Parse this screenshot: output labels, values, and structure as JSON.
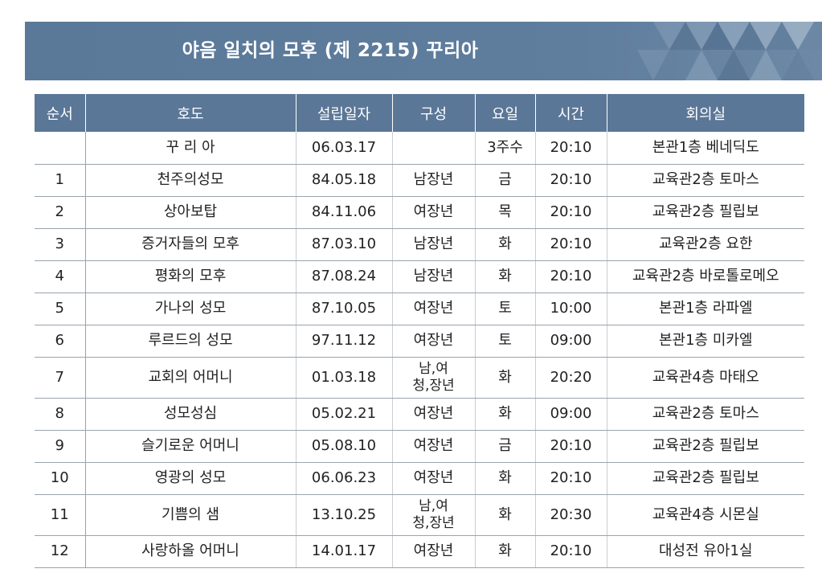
{
  "banner": {
    "title": "야음 일치의 모후 (제 2215) 꾸리아"
  },
  "colors": {
    "header_bg": "#5b7797",
    "banner_bg": "#5f7d9d"
  },
  "table": {
    "headers": [
      "순서",
      "호도",
      "설립일자",
      "구성",
      "요일",
      "시간",
      "회의실"
    ],
    "rows": [
      {
        "no": "",
        "name": "꾸 리 아",
        "date": "06.03.17",
        "comp": "",
        "day": "3주수",
        "time": "20:10",
        "room": "본관1층 베네딕도"
      },
      {
        "no": "1",
        "name": "천주의성모",
        "date": "84.05.18",
        "comp": "남장년",
        "day": "금",
        "time": "20:10",
        "room": "교육관2층 토마스"
      },
      {
        "no": "2",
        "name": "상아보탑",
        "date": "84.11.06",
        "comp": "여장년",
        "day": "목",
        "time": "20:10",
        "room": "교육관2층 필립보"
      },
      {
        "no": "3",
        "name": "증거자들의 모후",
        "date": "87.03.10",
        "comp": "남장년",
        "day": "화",
        "time": "20:10",
        "room": "교육관2층 요한"
      },
      {
        "no": "4",
        "name": "평화의 모후",
        "date": "87.08.24",
        "comp": "남장년",
        "day": "화",
        "time": "20:10",
        "room": "교육관2층 바로톨로메오"
      },
      {
        "no": "5",
        "name": "가나의 성모",
        "date": "87.10.05",
        "comp": "여장년",
        "day": "토",
        "time": "10:00",
        "room": "본관1층 라파엘"
      },
      {
        "no": "6",
        "name": "루르드의 성모",
        "date": "97.11.12",
        "comp": "여장년",
        "day": "토",
        "time": "09:00",
        "room": "본관1층 미카엘"
      },
      {
        "no": "7",
        "name": "교회의 어머니",
        "date": "01.03.18",
        "comp_line1": "남,여",
        "comp_line2": "청,장년",
        "day": "화",
        "time": "20:20",
        "room": "교육관4층 마태오"
      },
      {
        "no": "8",
        "name": "성모성심",
        "date": "05.02.21",
        "comp": "여장년",
        "day": "화",
        "time": "09:00",
        "room": "교육관2층 토마스"
      },
      {
        "no": "9",
        "name": "슬기로운 어머니",
        "date": "05.08.10",
        "comp": "여장년",
        "day": "금",
        "time": "20:10",
        "room": "교육관2층 필립보"
      },
      {
        "no": "10",
        "name": "영광의 성모",
        "date": "06.06.23",
        "comp": "여장년",
        "day": "화",
        "time": "20:10",
        "room": "교육관2층 필립보"
      },
      {
        "no": "11",
        "name": "기쁨의 샘",
        "date": "13.10.25",
        "comp_line1": "남,여",
        "comp_line2": "청,장년",
        "day": "화",
        "time": "20:30",
        "room": "교육관4층 시몬실"
      },
      {
        "no": "12",
        "name": "사랑하올 어머니",
        "date": "14.01.17",
        "comp": "여장년",
        "day": "화",
        "time": "20:10",
        "room": "대성전 유아1실"
      }
    ]
  }
}
